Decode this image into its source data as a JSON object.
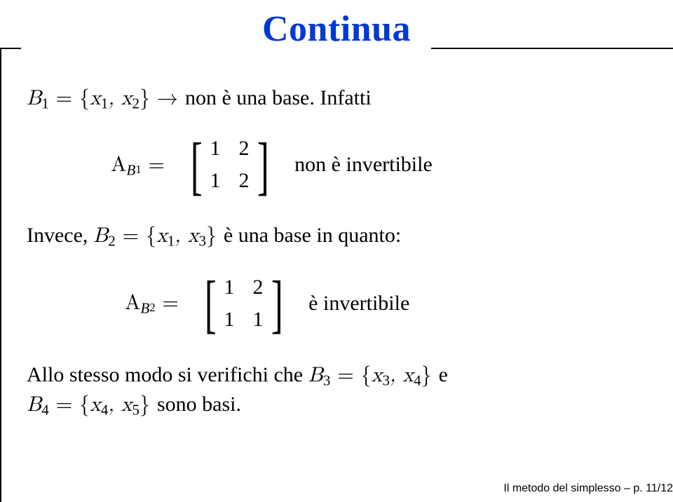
{
  "title": "Continua",
  "title_color": "#0038d6",
  "para1": {
    "lhs_var": "B",
    "lhs_sub": "1",
    "eq": " = {",
    "x1v": "x",
    "x1s": "1",
    "comma": ", ",
    "x2v": "x",
    "x2s": "2",
    "close": "} → ",
    "text": "non è una base. Infatti"
  },
  "eq1": {
    "Av": "A",
    "Bv": "B",
    "Bs": "1",
    "eq": " = ",
    "m": [
      "1",
      "2",
      "1",
      "2"
    ],
    "note": "non è invertibile"
  },
  "para2": {
    "pre": "Invece, ",
    "Bv": "B",
    "Bs": "2",
    "eq": " = {",
    "x1v": "x",
    "x1s": "1",
    "comma": ", ",
    "x2v": "x",
    "x2s": "3",
    "close": "} ",
    "text": "è una base in quanto:"
  },
  "eq2": {
    "Av": "A",
    "Bv": "B",
    "Bs": "2",
    "eq": " = ",
    "m": [
      "1",
      "2",
      "1",
      "1"
    ],
    "note": "è invertibile"
  },
  "para3": {
    "t1": "Allo stesso modo si verifichi che ",
    "B3v": "B",
    "B3s": "3",
    "eq3": " = {",
    "x3v": "x",
    "x3s": "3",
    "c1": ", ",
    "x4v": "x",
    "x4s": "4",
    "close3": "} ",
    "e": "e",
    "br": "",
    "B4v": "B",
    "B4s": "4",
    "eq4": " = {",
    "x4bv": "x",
    "x4bs": "4",
    "c2": ", ",
    "x5v": "x",
    "x5s": "5",
    "close4": "} ",
    "t2": "sono basi."
  },
  "footer": "Il metodo del simplesso – p. 11/12"
}
